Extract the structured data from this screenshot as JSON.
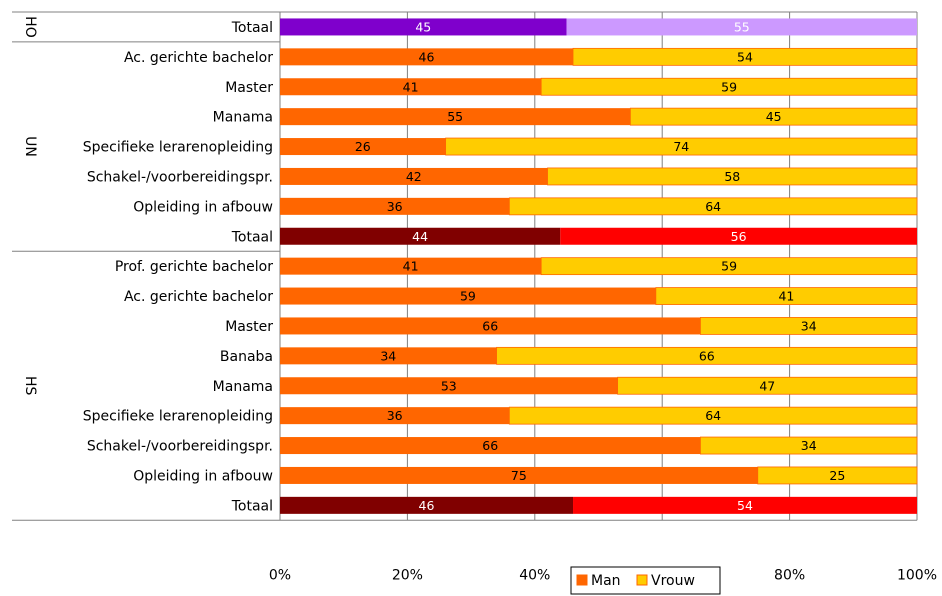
{
  "chart_data": {
    "type": "bar",
    "orientation": "horizontal",
    "stacked": true,
    "percent": true,
    "xlim": [
      0,
      100
    ],
    "xticks": [
      "0%",
      "20%",
      "40%",
      "60%",
      "80%",
      "100%"
    ],
    "grid": true,
    "legend_position": "bottom-right",
    "legend": [
      {
        "name": "Man",
        "color": "#FF6600"
      },
      {
        "name": "Vrouw",
        "color": "#FFCC00"
      }
    ],
    "groups": [
      {
        "label": "HO",
        "categories": [
          {
            "label": "Totaal",
            "man": 45,
            "vrouw": 55,
            "total_row": true,
            "man_color": "#7F00CC",
            "vrouw_color": "#CC99FF"
          }
        ]
      },
      {
        "label": "UN",
        "categories": [
          {
            "label": "Ac. gerichte bachelor",
            "man": 46,
            "vrouw": 54
          },
          {
            "label": "Master",
            "man": 41,
            "vrouw": 59
          },
          {
            "label": "Manama",
            "man": 55,
            "vrouw": 45
          },
          {
            "label": "Specifieke lerarenopleiding",
            "man": 26,
            "vrouw": 74
          },
          {
            "label": "Schakel-/voorbereidingspr.",
            "man": 42,
            "vrouw": 58
          },
          {
            "label": "Opleiding in afbouw",
            "man": 36,
            "vrouw": 64
          },
          {
            "label": "Totaal",
            "man": 44,
            "vrouw": 56,
            "total_row": true,
            "man_color": "#800000",
            "vrouw_color": "#FF0000"
          }
        ]
      },
      {
        "label": "HS",
        "categories": [
          {
            "label": "Prof. gerichte bachelor",
            "man": 41,
            "vrouw": 59
          },
          {
            "label": "Ac. gerichte bachelor",
            "man": 59,
            "vrouw": 41
          },
          {
            "label": "Master",
            "man": 66,
            "vrouw": 34
          },
          {
            "label": "Banaba",
            "man": 34,
            "vrouw": 66
          },
          {
            "label": "Manama",
            "man": 53,
            "vrouw": 47
          },
          {
            "label": "Specifieke lerarenopleiding",
            "man": 36,
            "vrouw": 64
          },
          {
            "label": "Schakel-/voorbereidingspr.",
            "man": 66,
            "vrouw": 34
          },
          {
            "label": "Opleiding in afbouw",
            "man": 75,
            "vrouw": 25
          },
          {
            "label": "Totaal",
            "man": 46,
            "vrouw": 54,
            "total_row": true,
            "man_color": "#800000",
            "vrouw_color": "#FF0000"
          }
        ]
      }
    ]
  }
}
